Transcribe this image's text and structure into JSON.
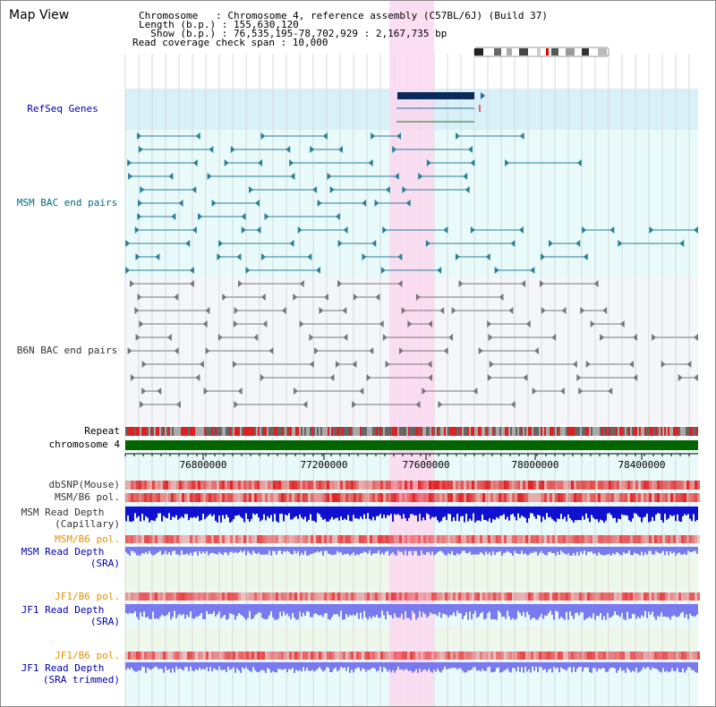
{
  "header": {
    "title": "Map View",
    "info_lines": [
      "Chromosome   : Chromosome 4, reference assembly (C57BL/6J) (Build 37)",
      "Length (b.p.) : 155,630,120",
      "  Show (b.p.) : 76,535,195-78,702,929 : 2,167,735 bp",
      "Read coverage check span : 10,000"
    ]
  },
  "tracks": {
    "refseq": "RefSeq Genes",
    "msm_bac": "MSM BAC end pairs",
    "b6n_bac": "B6N BAC end pairs",
    "repeat": "Repeat",
    "chromosome": "chromosome 4",
    "dbsnp": "dbSNP(Mouse)",
    "msm_b6_pol": "MSM/B6 pol.",
    "msm_depth_cap_1": "MSM Read Depth",
    "msm_depth_cap_2": "(Capillary)",
    "msm_b6_pol_2": "MSM/B6 pol.",
    "msm_depth_sra_1": "MSM Read Depth",
    "msm_depth_sra_2": "(SRA)",
    "jf1_b6_pol": "JF1/B6 pol.",
    "jf1_depth_sra_1": "JF1 Read Depth",
    "jf1_depth_sra_2": "(SRA)",
    "jf1_b6_pol_2": "JF1/B6 pol.",
    "jf1_depth_trim_1": "JF1 Read Depth",
    "jf1_depth_trim_2": "(SRA trimmed)"
  },
  "axis": {
    "ticks": [
      "76800000",
      "77200000",
      "77600000",
      "78000000",
      "78400000"
    ]
  },
  "colors": {
    "blue_label": "#0000b0",
    "teal_label": "#006c80",
    "orange_label": "#e89000",
    "highlight": "#fcd8f0",
    "chromosome_bar": "#006400",
    "refseq_bg": "#d8f0f8",
    "msm_bg": "#e8fafa"
  }
}
